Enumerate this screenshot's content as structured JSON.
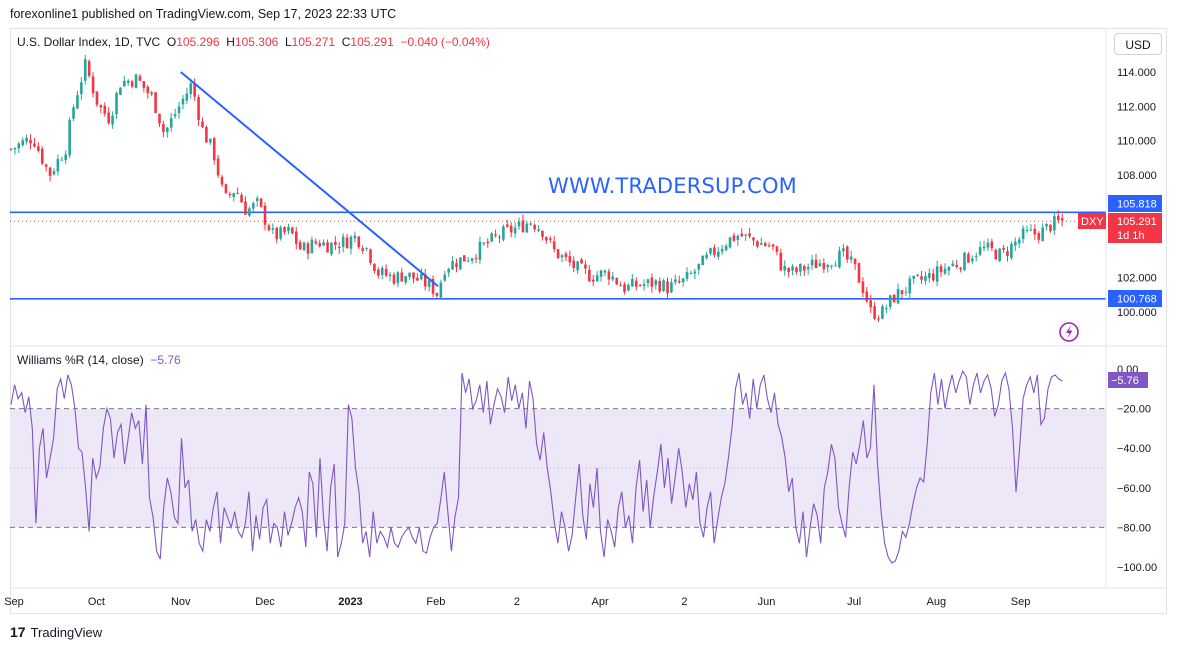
{
  "header": {
    "publisher_line": "forexonline1 published on TradingView.com, Sep 17, 2023 22:33 UTC"
  },
  "legend": {
    "symbol": "U.S. Dollar Index, 1D, TVC",
    "o_label": "O",
    "o_value": "105.296",
    "h_label": "H",
    "h_value": "105.306",
    "l_label": "L",
    "l_value": "105.271",
    "c_label": "C",
    "c_value": "105.291",
    "change": "−0.040 (−0.04%)"
  },
  "currency_button": "USD",
  "watermark": "WWW.TRADERSUP.COM",
  "indicator_legend": {
    "name": "Williams %R (14, close)",
    "value": "−5.76"
  },
  "footer": {
    "brand": "TradingView",
    "logo": "17"
  },
  "badges": {
    "resistance": "105.818",
    "ticker": "DXY",
    "price": "105.291",
    "countdown": "1d 1h",
    "support": "100.768",
    "williams": "−5.76"
  },
  "colors": {
    "up": "#26a69a",
    "down": "#f23645",
    "line": "#2962ff",
    "williams": "#7e57c2",
    "band": "#ede7f8"
  },
  "chart_data": [
    {
      "type": "candlestick",
      "title": "U.S. Dollar Index, 1D, TVC",
      "ylim": [
        99.0,
        114.5
      ],
      "y_ticks": [
        "114.000",
        "112.000",
        "110.000",
        "108.000",
        "102.000",
        "100.000"
      ],
      "y_tick_values": [
        114,
        112,
        110,
        108,
        102,
        100
      ],
      "x_ticks": [
        "Sep",
        "Oct",
        "Nov",
        "Dec",
        "2023",
        "Feb",
        "2",
        "Apr",
        "2",
        "Jun",
        "Jul",
        "Aug",
        "Sep"
      ],
      "x_tick_bold": [
        false,
        false,
        false,
        false,
        true,
        false,
        false,
        false,
        false,
        false,
        false,
        false,
        false
      ],
      "horizontal_lines": [
        105.818,
        100.768
      ],
      "trendline": [
        {
          "x": 0.155,
          "y": 114.0
        },
        {
          "x": 0.39,
          "y": 101.5
        }
      ],
      "last_price": 105.291,
      "close_path": [
        [
          0.0,
          109.5
        ],
        [
          0.02,
          110.2
        ],
        [
          0.035,
          108.0
        ],
        [
          0.05,
          109.6
        ],
        [
          0.058,
          112.3
        ],
        [
          0.068,
          114.4
        ],
        [
          0.08,
          112.0
        ],
        [
          0.09,
          111.3
        ],
        [
          0.1,
          113.4
        ],
        [
          0.115,
          113.6
        ],
        [
          0.13,
          112.4
        ],
        [
          0.14,
          110.4
        ],
        [
          0.15,
          111.6
        ],
        [
          0.165,
          113.3
        ],
        [
          0.175,
          110.6
        ],
        [
          0.185,
          109.3
        ],
        [
          0.195,
          106.5
        ],
        [
          0.205,
          107.2
        ],
        [
          0.215,
          105.9
        ],
        [
          0.225,
          106.3
        ],
        [
          0.24,
          104.4
        ],
        [
          0.255,
          104.7
        ],
        [
          0.265,
          103.6
        ],
        [
          0.28,
          104.1
        ],
        [
          0.29,
          103.9
        ],
        [
          0.305,
          104.1
        ],
        [
          0.315,
          104.4
        ],
        [
          0.325,
          103.7
        ],
        [
          0.335,
          102.3
        ],
        [
          0.35,
          102.0
        ],
        [
          0.36,
          102.2
        ],
        [
          0.375,
          101.8
        ],
        [
          0.385,
          101.4
        ],
        [
          0.39,
          101.0
        ],
        [
          0.395,
          102.6
        ],
        [
          0.405,
          102.9
        ],
        [
          0.42,
          103.3
        ],
        [
          0.435,
          104.0
        ],
        [
          0.45,
          104.6
        ],
        [
          0.465,
          105.0
        ],
        [
          0.475,
          105.3
        ],
        [
          0.485,
          104.8
        ],
        [
          0.495,
          103.6
        ],
        [
          0.505,
          103.1
        ],
        [
          0.515,
          102.6
        ],
        [
          0.53,
          102.1
        ],
        [
          0.545,
          102.3
        ],
        [
          0.56,
          101.4
        ],
        [
          0.575,
          101.6
        ],
        [
          0.59,
          101.7
        ],
        [
          0.6,
          101.4
        ],
        [
          0.615,
          101.8
        ],
        [
          0.625,
          102.4
        ],
        [
          0.64,
          103.4
        ],
        [
          0.655,
          104.2
        ],
        [
          0.665,
          104.5
        ],
        [
          0.68,
          104.1
        ],
        [
          0.695,
          103.8
        ],
        [
          0.705,
          102.5
        ],
        [
          0.715,
          102.3
        ],
        [
          0.73,
          102.7
        ],
        [
          0.745,
          103.0
        ],
        [
          0.76,
          103.3
        ],
        [
          0.77,
          102.6
        ],
        [
          0.78,
          101.1
        ],
        [
          0.785,
          100.0
        ],
        [
          0.795,
          99.9
        ],
        [
          0.805,
          100.8
        ],
        [
          0.815,
          101.3
        ],
        [
          0.825,
          101.7
        ],
        [
          0.84,
          102.1
        ],
        [
          0.855,
          102.6
        ],
        [
          0.87,
          103.0
        ],
        [
          0.88,
          103.5
        ],
        [
          0.89,
          103.7
        ],
        [
          0.905,
          103.3
        ],
        [
          0.915,
          103.9
        ],
        [
          0.925,
          104.5
        ],
        [
          0.94,
          104.6
        ],
        [
          0.95,
          105.1
        ],
        [
          0.96,
          105.29
        ]
      ]
    },
    {
      "type": "line",
      "title": "Williams %R (14, close)",
      "ylim": [
        -104,
        3
      ],
      "y_ticks": [
        "0.00",
        "−20.00",
        "−40.00",
        "−60.00",
        "−80.00",
        "−100.00"
      ],
      "y_tick_values": [
        0,
        -20,
        -40,
        -60,
        -80,
        -100
      ],
      "band": [
        -80,
        -20
      ],
      "dashed_levels": [
        -20,
        -50,
        -80
      ],
      "last_value": -5.76,
      "series": [
        {
          "values": [
            -18,
            -8,
            -15,
            -12,
            -22,
            -14,
            -30,
            -78,
            -40,
            -30,
            -55,
            -45,
            -35,
            -10,
            -5,
            -15,
            -3,
            -8,
            -20,
            -40,
            -42,
            -60,
            -82,
            -45,
            -55,
            -50,
            -30,
            -20,
            -25,
            -45,
            -32,
            -28,
            -48,
            -35,
            -22,
            -30,
            -26,
            -48,
            -18,
            -65,
            -75,
            -92,
            -96,
            -70,
            -55,
            -62,
            -75,
            -78,
            -35,
            -60,
            -56,
            -82,
            -76,
            -88,
            -92,
            -76,
            -82,
            -70,
            -62,
            -88,
            -70,
            -75,
            -80,
            -72,
            -82,
            -85,
            -78,
            -62,
            -92,
            -74,
            -86,
            -70,
            -66,
            -88,
            -78,
            -80,
            -90,
            -72,
            -84,
            -78,
            -70,
            -65,
            -72,
            -90,
            -52,
            -58,
            -85,
            -45,
            -75,
            -92,
            -60,
            -48,
            -95,
            -88,
            -78,
            -18,
            -25,
            -50,
            -62,
            -88,
            -82,
            -95,
            -72,
            -88,
            -82,
            -85,
            -90,
            -80,
            -88,
            -90,
            -85,
            -82,
            -80,
            -85,
            -88,
            -80,
            -92,
            -93,
            -85,
            -80,
            -78,
            -66,
            -52,
            -72,
            -92,
            -75,
            -65,
            -2,
            -12,
            -5,
            -20,
            -16,
            -8,
            -22,
            -6,
            -28,
            -18,
            -10,
            -14,
            -22,
            -4,
            -16,
            -8,
            -20,
            -12,
            -30,
            -6,
            -15,
            -38,
            -46,
            -32,
            -50,
            -62,
            -78,
            -88,
            -72,
            -80,
            -92,
            -84,
            -65,
            -48,
            -74,
            -86,
            -58,
            -70,
            -50,
            -82,
            -95,
            -76,
            -82,
            -90,
            -70,
            -62,
            -80,
            -74,
            -88,
            -60,
            -46,
            -72,
            -56,
            -80,
            -64,
            -52,
            -38,
            -60,
            -45,
            -68,
            -55,
            -40,
            -52,
            -70,
            -58,
            -66,
            -52,
            -78,
            -85,
            -70,
            -62,
            -88,
            -76,
            -65,
            -58,
            -45,
            -30,
            -10,
            -2,
            -18,
            -12,
            -25,
            -5,
            -20,
            -8,
            -3,
            -15,
            -22,
            -12,
            -28,
            -34,
            -45,
            -62,
            -55,
            -80,
            -88,
            -72,
            -95,
            -80,
            -68,
            -74,
            -88,
            -60,
            -52,
            -38,
            -45,
            -70,
            -78,
            -85,
            -60,
            -42,
            -48,
            -38,
            -26,
            -45,
            -40,
            -8,
            -48,
            -72,
            -88,
            -95,
            -98,
            -97,
            -92,
            -82,
            -85,
            -78,
            -68,
            -60,
            -55,
            -57,
            -38,
            -12,
            -2,
            -18,
            -5,
            -20,
            -10,
            -3,
            -12,
            -6,
            -1,
            -4,
            -18,
            -8,
            -2,
            -12,
            -6,
            -3,
            -10,
            -24,
            -18,
            -6,
            -2,
            -10,
            -30,
            -62,
            -40,
            -15,
            -8,
            -4,
            -12,
            -3,
            -28,
            -25,
            -10,
            -4,
            -3,
            -5,
            -6
          ]
        }
      ]
    }
  ]
}
